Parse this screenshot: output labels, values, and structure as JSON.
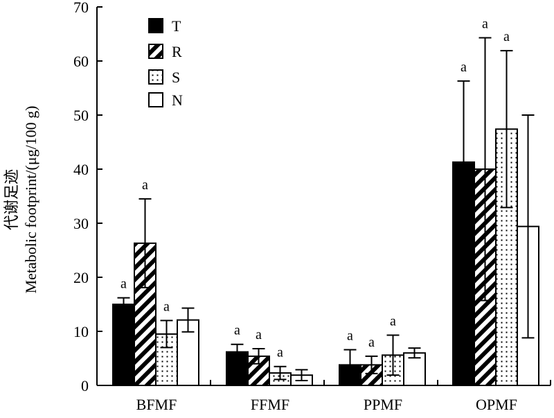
{
  "chart_data": {
    "type": "bar",
    "title": "",
    "xlabel": "",
    "ylabel_line1": "代谢足迹",
    "ylabel_line2": "Metabolic footprint/(μg/100 g)",
    "ylim": [
      0,
      70
    ],
    "yticks": [
      0,
      10,
      20,
      30,
      40,
      50,
      60,
      70
    ],
    "grid": false,
    "legend_position": "top-left",
    "categories": [
      "BFMF",
      "FFMF",
      "PPMF",
      "OPMF"
    ],
    "series": [
      {
        "name": "T",
        "fill": "solid",
        "values": [
          15.0,
          6.2,
          3.8,
          41.3
        ],
        "errors": [
          1.2,
          1.4,
          2.8,
          15.0
        ],
        "labels": [
          "a",
          "a",
          "a",
          "a"
        ]
      },
      {
        "name": "R",
        "fill": "hatch",
        "values": [
          26.3,
          5.4,
          3.8,
          40.0
        ],
        "errors": [
          8.2,
          1.4,
          1.6,
          24.3
        ],
        "labels": [
          "a",
          "a",
          "a",
          "a"
        ]
      },
      {
        "name": "S",
        "fill": "dotted",
        "values": [
          9.5,
          2.3,
          5.6,
          47.4
        ],
        "errors": [
          2.5,
          1.2,
          3.7,
          14.5
        ],
        "labels": [
          "a",
          "a",
          "a",
          "a"
        ]
      },
      {
        "name": "N",
        "fill": "empty",
        "values": [
          12.1,
          1.9,
          6.0,
          29.4
        ],
        "errors": [
          2.2,
          1.0,
          0.9,
          20.6
        ],
        "labels": [
          "",
          "",
          "",
          ""
        ]
      }
    ],
    "colors": {
      "axis": "#000000",
      "bar_edge": "#000000",
      "solid": "#000000",
      "background": "#ffffff"
    }
  }
}
